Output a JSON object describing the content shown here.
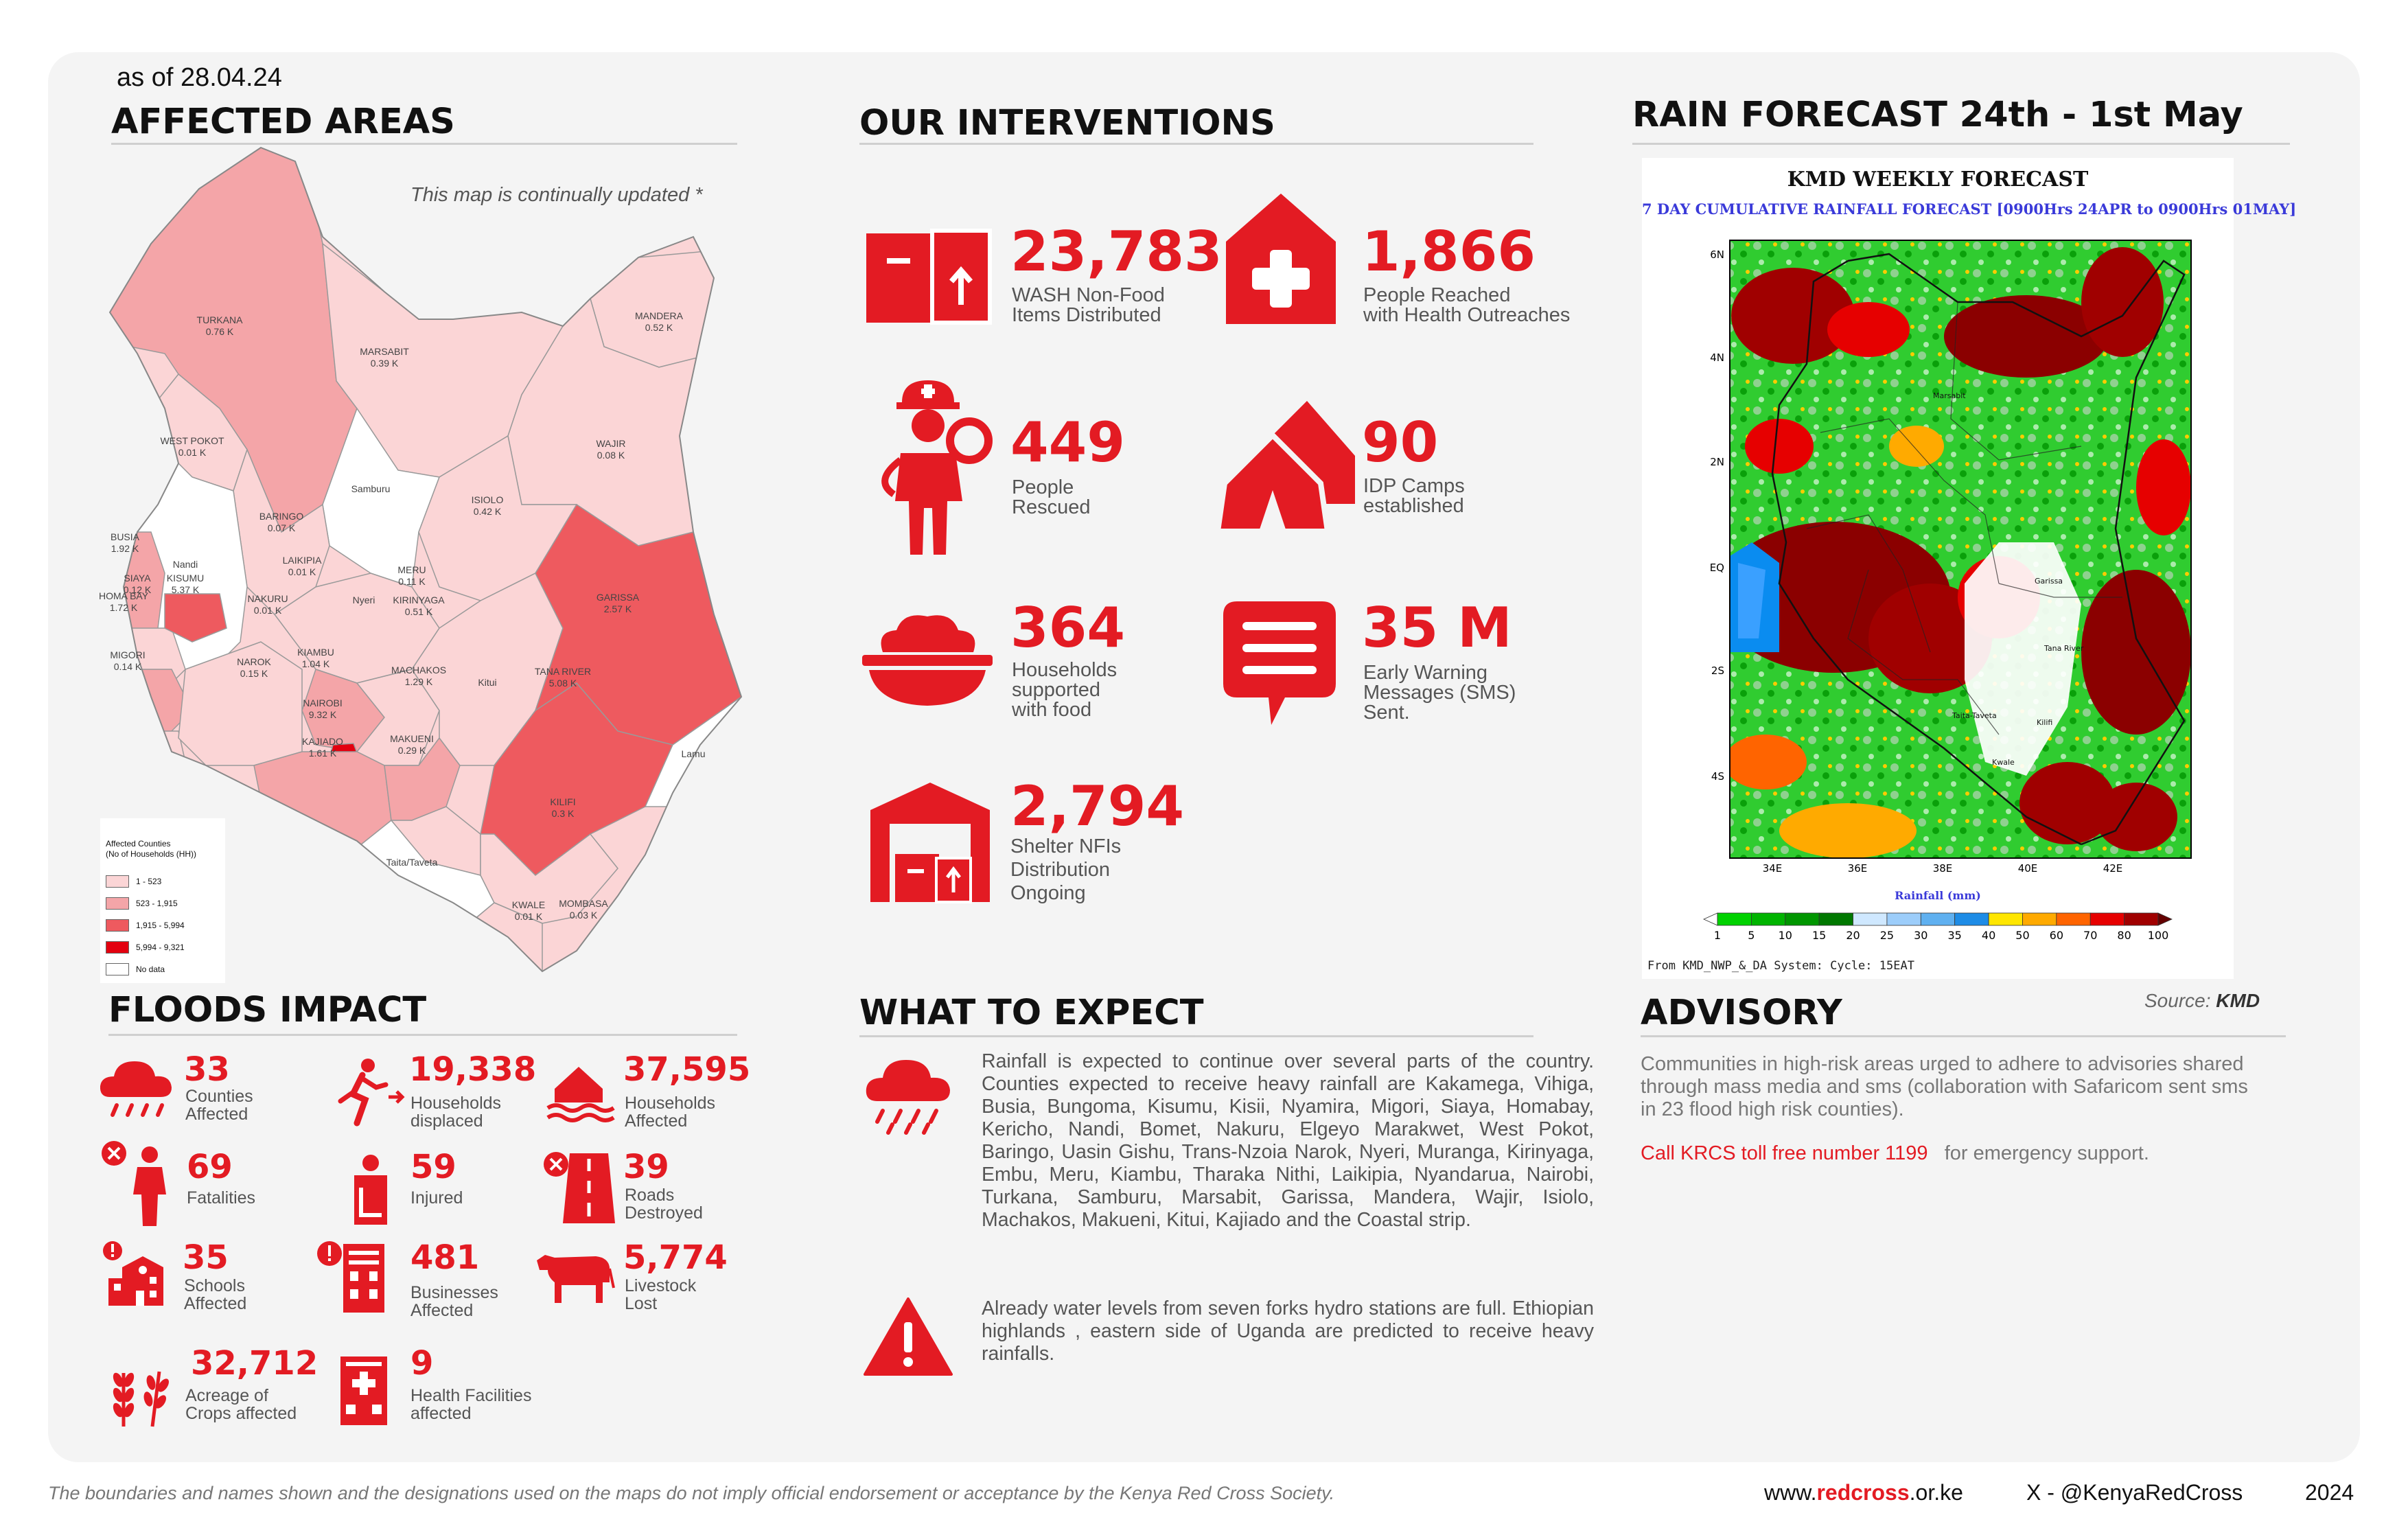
{
  "date": "as of 28.04.24",
  "affected_areas": {
    "title": "AFFECTED AREAS",
    "note": "This map is continually updated *",
    "counties": [
      {
        "name": "TURKANA",
        "value": "0.76 K",
        "level": 2
      },
      {
        "name": "MARSABIT",
        "value": "0.39 K",
        "level": 1
      },
      {
        "name": "MANDERA",
        "value": "0.52 K",
        "level": 1
      },
      {
        "name": "WEST POKOT",
        "value": "0.01 K",
        "level": 1
      },
      {
        "name": "WAJIR",
        "value": "0.08 K",
        "level": 1
      },
      {
        "name": "Samburu",
        "value": "",
        "level": 0
      },
      {
        "name": "ISIOLO",
        "value": "0.42 K",
        "level": 1
      },
      {
        "name": "BARINGO",
        "value": "0.07 K",
        "level": 1
      },
      {
        "name": "BUSIA",
        "value": "1.92 K",
        "level": 2
      },
      {
        "name": "Nandi",
        "value": "",
        "level": 0
      },
      {
        "name": "KISUMU",
        "value": "5.37 K",
        "level": 3
      },
      {
        "name": "SIAYA",
        "value": "0.12 K",
        "level": 1
      },
      {
        "name": "LAIKIPIA",
        "value": "0.01 K",
        "level": 1
      },
      {
        "name": "MERU",
        "value": "0.11 K",
        "level": 1
      },
      {
        "name": "HOMA BAY",
        "value": "1.72 K",
        "level": 2
      },
      {
        "name": "NAKURU",
        "value": "0.01 K",
        "level": 1
      },
      {
        "name": "Nyeri",
        "value": "",
        "level": 0
      },
      {
        "name": "KIRINYAGA",
        "value": "0.51 K",
        "level": 1
      },
      {
        "name": "GARISSA",
        "value": "2.57 K",
        "level": 3
      },
      {
        "name": "MIGORI",
        "value": "0.14 K",
        "level": 1
      },
      {
        "name": "KIAMBU",
        "value": "1.04 K",
        "level": 2
      },
      {
        "name": "NAROK",
        "value": "0.15 K",
        "level": 1
      },
      {
        "name": "MACHAKOS",
        "value": "1.29 K",
        "level": 2
      },
      {
        "name": "Kitui",
        "value": "",
        "level": 1
      },
      {
        "name": "TANA RIVER",
        "value": "5.08 K",
        "level": 3
      },
      {
        "name": "NAIROBI",
        "value": "9.32 K",
        "level": 4
      },
      {
        "name": "KAJIADO",
        "value": "1.61 K",
        "level": 2
      },
      {
        "name": "MAKUENI",
        "value": "0.29 K",
        "level": 1
      },
      {
        "name": "Lamu",
        "value": "",
        "level": 0
      },
      {
        "name": "KILIFI",
        "value": "0.3 K",
        "level": 1
      },
      {
        "name": "Taita/Taveta",
        "value": "",
        "level": 0
      },
      {
        "name": "KWALE",
        "value": "0.01 K",
        "level": 1
      },
      {
        "name": "MOMBASA",
        "value": "0.03 K",
        "level": 1
      }
    ],
    "legend": {
      "title": "Affected Counties\n(No of Households (HH))",
      "items": [
        {
          "label": "1 - 523",
          "color": "#fbd5d6"
        },
        {
          "label": "523 - 1,915",
          "color": "#f4a5a8"
        },
        {
          "label": "1,915 - 5,994",
          "color": "#ee5a5f"
        },
        {
          "label": "5,994 - 9,321",
          "color": "#e3000f"
        },
        {
          "label": "No data",
          "color": "#ffffff"
        }
      ]
    }
  },
  "interventions": {
    "title": "OUR INTERVENTIONS",
    "items": [
      {
        "value": "23,783",
        "label": "WASH Non-Food\nItems Distributed",
        "icon": "boxes-icon"
      },
      {
        "value": "1,866",
        "label": "People Reached\nwith Health Outreaches",
        "icon": "health-house-icon"
      },
      {
        "value": "449",
        "label": "People\nRescued",
        "icon": "rescuer-icon"
      },
      {
        "value": "90",
        "label": "IDP Camps\nestablished",
        "icon": "tent-icon"
      },
      {
        "value": "364",
        "label": "Households\nsupported\nwith food",
        "icon": "food-bowl-icon"
      },
      {
        "value": "35 M",
        "label": "Early Warning\nMessages (SMS)\nSent.",
        "icon": "sms-icon"
      },
      {
        "value": "2,794",
        "label": "Shelter NFIs\nDistribution\nOngoing",
        "icon": "warehouse-icon"
      }
    ]
  },
  "rain": {
    "title": "RAIN FORECAST 24th - 1st May",
    "map_title": "KMD WEEKLY FORECAST",
    "map_subtitle": "7 DAY CUMULATIVE RAINFALL FORECAST [0900Hrs 24APR to 0900Hrs 01MAY]",
    "lat_ticks": [
      "6N",
      "4N",
      "2N",
      "EQ",
      "2S",
      "4S"
    ],
    "lon_ticks": [
      "34E",
      "36E",
      "38E",
      "40E",
      "42E"
    ],
    "places": [
      "Marsabit",
      "Garissa",
      "Tana River",
      "Taita-Taveta",
      "Kilifi",
      "Kwale"
    ],
    "colorbar_label": "Rainfall (mm)",
    "colorbar_ticks": [
      "1",
      "5",
      "10",
      "15",
      "20",
      "25",
      "30",
      "35",
      "40",
      "50",
      "60",
      "70",
      "80",
      "100"
    ],
    "colorbar_colors": [
      "#ffffff",
      "#00d200",
      "#00b400",
      "#009600",
      "#007800",
      "#cfe8ff",
      "#9ccdfa",
      "#5fb0f0",
      "#1e8ce6",
      "#ffe600",
      "#ffaa00",
      "#ff6400",
      "#e60000",
      "#a00000",
      "#640000"
    ],
    "system": "From KMD_NWP_&_DA System: Cycle: 15EAT",
    "source_label": "Source:",
    "source_value": "KMD"
  },
  "floods": {
    "title": "FLOODS IMPACT",
    "items": [
      {
        "value": "33",
        "label": "Counties\nAffected",
        "icon": "rain-cloud-icon"
      },
      {
        "value": "19,338",
        "label": "Households\ndisplaced",
        "icon": "person-fleeing-icon"
      },
      {
        "value": "37,595",
        "label": "Households\nAffected",
        "icon": "flooded-house-icon"
      },
      {
        "value": "69",
        "label": "Fatalities",
        "icon": "fatality-icon"
      },
      {
        "value": "59",
        "label": "Injured",
        "icon": "injured-icon"
      },
      {
        "value": "39",
        "label": "Roads\nDestroyed",
        "icon": "road-closed-icon"
      },
      {
        "value": "35",
        "label": "Schools\nAffected",
        "icon": "school-icon"
      },
      {
        "value": "481",
        "label": "Businesses\nAffected",
        "icon": "business-icon"
      },
      {
        "value": "5,774",
        "label": "Livestock\nLost",
        "icon": "cow-icon"
      },
      {
        "value": "32,712",
        "label": "Acreage of\nCrops affected",
        "icon": "crops-icon"
      },
      {
        "value": "9",
        "label": "Health Facilities\naffected",
        "icon": "hospital-icon"
      }
    ]
  },
  "expect": {
    "title": "WHAT TO EXPECT",
    "p1": "Rainfall is expected to continue over several parts of the country. Counties expected to receive heavy rainfall are Kakamega, Vihiga, Busia, Bungoma, Kisumu, Kisii, Nyamira, Migori, Siaya, Homabay, Kericho, Nandi, Bomet, Nakuru, Elgeyo Marakwet, West Pokot, Baringo, Uasin Gishu, Trans-Nzoia Narok, Nyeri, Muranga, Kirinyaga, Embu, Meru, Kiambu, Tharaka Nithi, Laikipia, Nyandarua, Nairobi, Turkana, Samburu, Marsabit, Garissa, Mandera, Wajir, Isiolo, Machakos, Makueni, Kitui, Kajiado and the Coastal strip.",
    "p2": "Already water levels from seven forks hydro stations are full. Ethiopian highlands , eastern side of Uganda are predicted to receive heavy rainfalls."
  },
  "advisory": {
    "title": "ADVISORY",
    "text": "Communities in high-risk areas urged to adhere to advisories shared through mass media and sms (collaboration with Safaricom sent sms in 23 flood high risk counties).",
    "call_red": "Call KRCS toll free number 1199",
    "call_rest": "for emergency support."
  },
  "footer": {
    "disclaimer": "The boundaries and names shown and the designations used on the maps do not imply official endorsement or acceptance by the Kenya Red Cross Society.",
    "web_prefix": "www.",
    "web_bold": "redcross",
    "web_suffix": ".or.ke",
    "social": "X -  @KenyaRedCross",
    "year": "2024"
  }
}
